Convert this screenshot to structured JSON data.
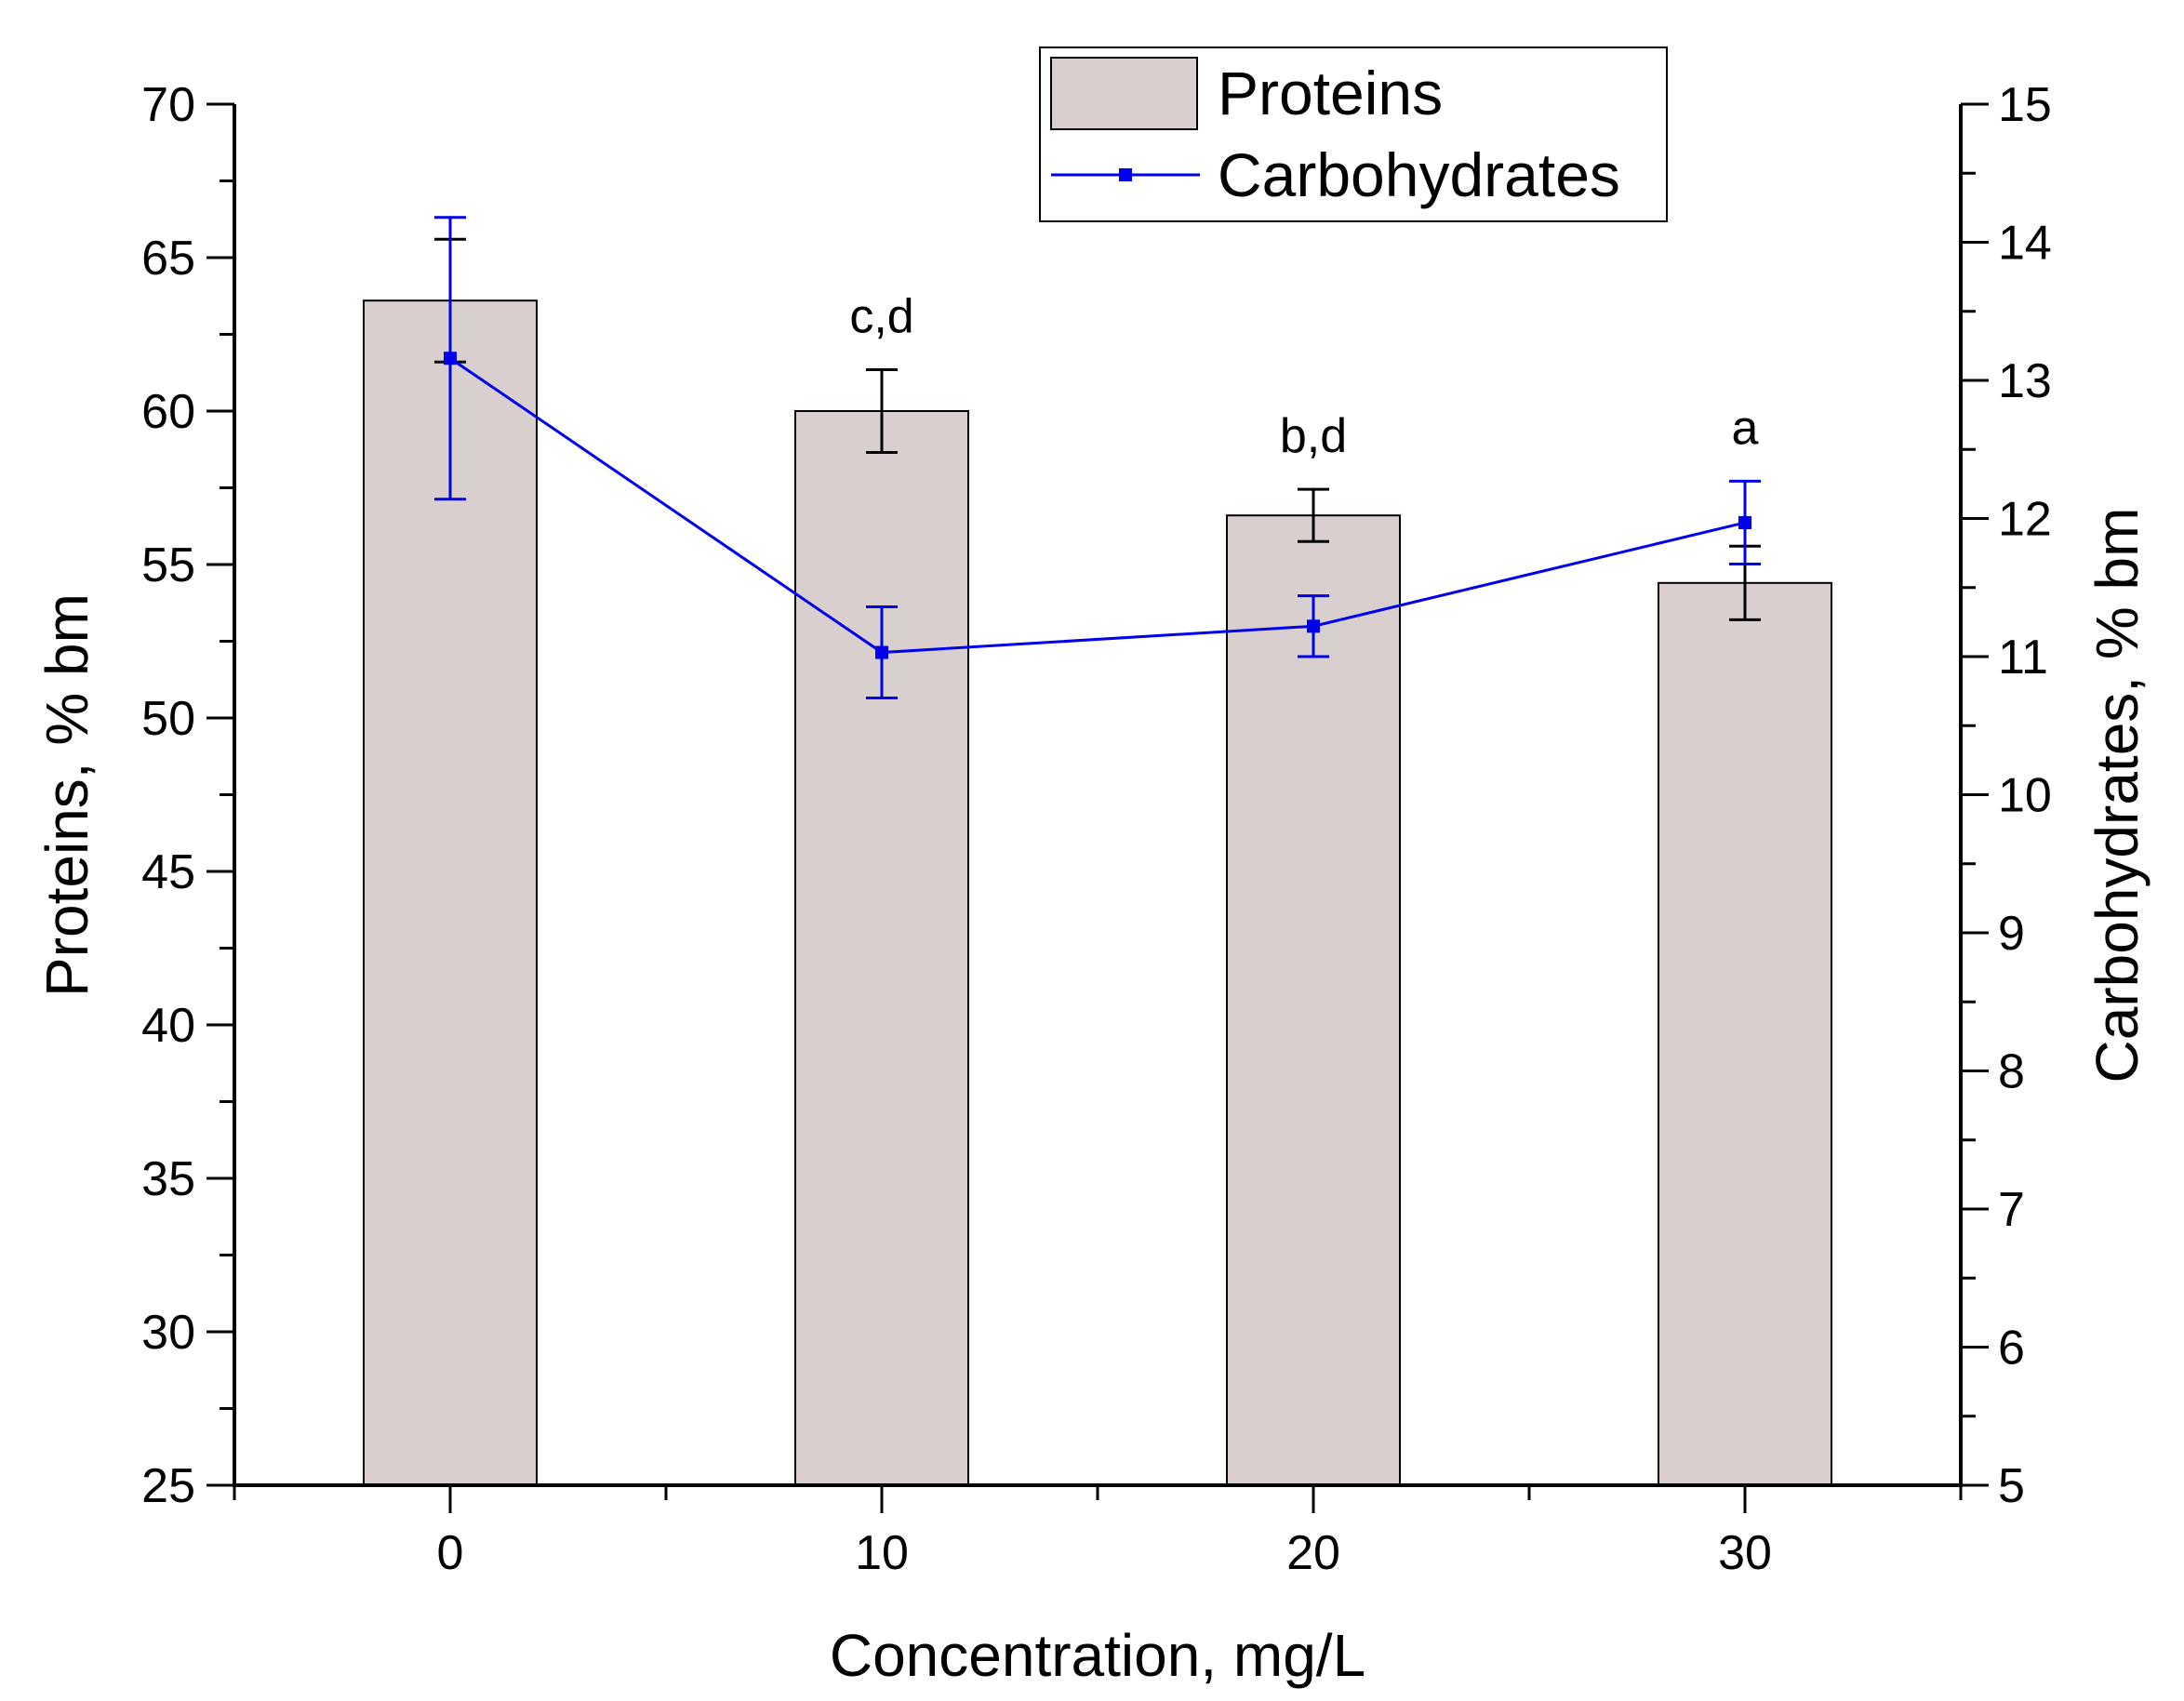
{
  "chart_data": {
    "type": "bar",
    "categories": [
      "0",
      "10",
      "20",
      "30"
    ],
    "xlabel": "Concentration, mg/L",
    "ylabel": "Proteins, % bm",
    "ylabel_right": "Carbohydrates, % bm",
    "ylim": [
      25,
      70
    ],
    "ylim_right": [
      5,
      15
    ],
    "yticks": [
      "25",
      "30",
      "35",
      "40",
      "45",
      "50",
      "55",
      "60",
      "65",
      "70"
    ],
    "yticks_right": [
      "5",
      "6",
      "7",
      "8",
      "9",
      "10",
      "11",
      "12",
      "13",
      "14",
      "15"
    ],
    "xlim": [
      -5,
      35
    ],
    "x_values": [
      0,
      10,
      20,
      30
    ],
    "series": [
      {
        "name": "Proteins",
        "kind": "bar",
        "axis": "left",
        "values": [
          63.6,
          60.0,
          56.6,
          54.4
        ],
        "errors": [
          2.0,
          1.35,
          0.85,
          1.2
        ],
        "color": "#d9cfcf",
        "edge_color": "#000000"
      },
      {
        "name": "Carbohydrates",
        "kind": "line",
        "axis": "right",
        "values": [
          13.16,
          11.03,
          11.22,
          11.97
        ],
        "errors": [
          1.02,
          0.33,
          0.22,
          0.3
        ],
        "color": "#0000ee"
      }
    ],
    "annotations": [
      {
        "category": "10",
        "text": "c,d"
      },
      {
        "category": "20",
        "text": "b,d"
      },
      {
        "category": "30",
        "text": "a"
      }
    ],
    "legend_position": "top-right"
  }
}
